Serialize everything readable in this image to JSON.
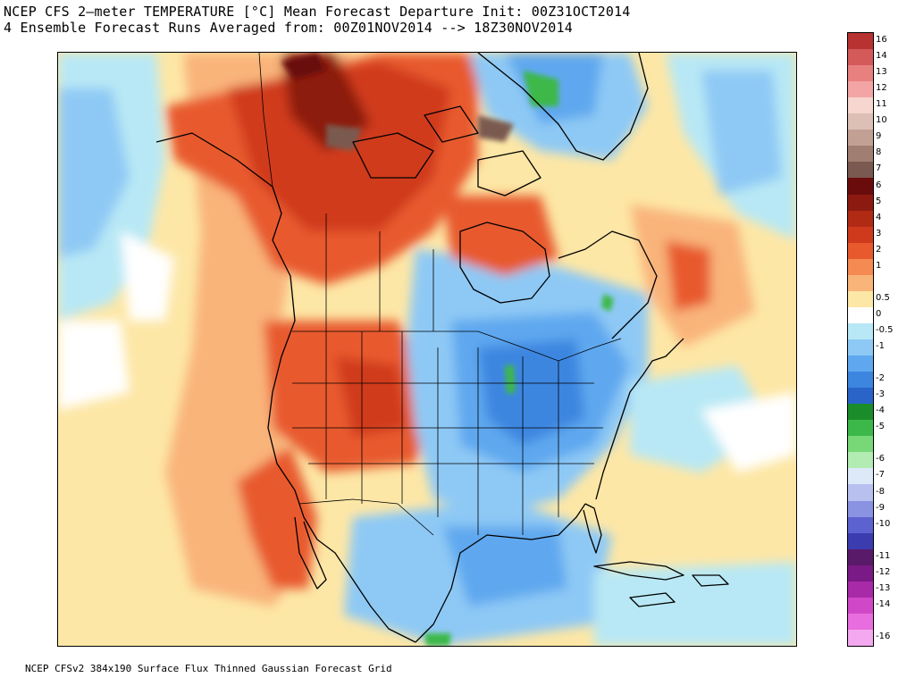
{
  "title_line1": "NCEP CFS 2—meter TEMPERATURE [°C] Mean Forecast Departure Init: 00Z31OCT2014",
  "title_line2": "4 Ensemble Forecast Runs Averaged from: 00Z01NOV2014 --> 18Z30NOV2014",
  "footer": "NCEP CFSv2 384x190 Surface Flux Thinned Gaussian Forecast Grid",
  "colorbar": {
    "levels": [
      {
        "label": "16",
        "color": "#b83232"
      },
      {
        "label": "14",
        "color": "#d45a5a"
      },
      {
        "label": "13",
        "color": "#e88080"
      },
      {
        "label": "12",
        "color": "#f3a5a5"
      },
      {
        "label": "11",
        "color": "#f6d6cf"
      },
      {
        "label": "10",
        "color": "#dcc0b6"
      },
      {
        "label": "9",
        "color": "#c2a094"
      },
      {
        "label": "8",
        "color": "#a17e72"
      },
      {
        "label": "7",
        "color": "#7a5a50"
      },
      {
        "label": "6",
        "color": "#6a0c0c"
      },
      {
        "label": "5",
        "color": "#8c1a10"
      },
      {
        "label": "4",
        "color": "#b02a14"
      },
      {
        "label": "3",
        "color": "#d03a1c"
      },
      {
        "label": "2",
        "color": "#e85a2e"
      },
      {
        "label": "1",
        "color": "#f58a52"
      },
      {
        "label": "",
        "color": "#f9b47a"
      },
      {
        "label": "0.5",
        "color": "#fde7a6"
      },
      {
        "label": "0",
        "color": "#ffffff"
      },
      {
        "label": "-0.5",
        "color": "#b8e8f5"
      },
      {
        "label": "-1",
        "color": "#8ec9f5"
      },
      {
        "label": "",
        "color": "#5fa8ef"
      },
      {
        "label": "-2",
        "color": "#3c86e0"
      },
      {
        "label": "-3",
        "color": "#2a64c8"
      },
      {
        "label": "-4",
        "color": "#1a8c2a"
      },
      {
        "label": "-5",
        "color": "#3cb84a"
      },
      {
        "label": "",
        "color": "#78d878"
      },
      {
        "label": "-6",
        "color": "#b2ecb2"
      },
      {
        "label": "-7",
        "color": "#dde8f8"
      },
      {
        "label": "-8",
        "color": "#b8c0f0"
      },
      {
        "label": "-9",
        "color": "#8a92e2"
      },
      {
        "label": "-10",
        "color": "#5c62d0"
      },
      {
        "label": "",
        "color": "#3a3cb0"
      },
      {
        "label": "-11",
        "color": "#5a1a6a"
      },
      {
        "label": "-12",
        "color": "#7a1a86"
      },
      {
        "label": "-13",
        "color": "#a82aa8"
      },
      {
        "label": "-14",
        "color": "#d048c8"
      },
      {
        "label": "",
        "color": "#e86ee0"
      },
      {
        "label": "-16",
        "color": "#f3a8ef"
      }
    ]
  }
}
